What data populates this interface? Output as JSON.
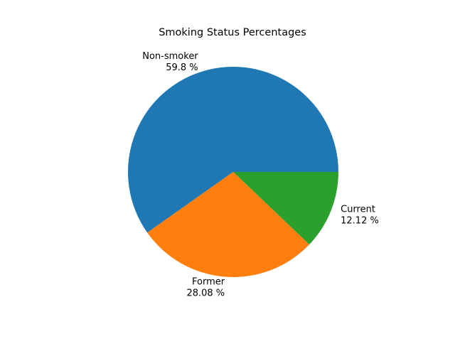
{
  "chart_data": {
    "type": "pie",
    "title": "Smoking Status Percentages",
    "slices": [
      {
        "label": "Non-smoker",
        "value": 59.8,
        "value_label": "59.8 %",
        "color": "#1f77b4"
      },
      {
        "label": "Former",
        "value": 28.08,
        "value_label": "28.08 %",
        "color": "#ff7f0e"
      },
      {
        "label": "Current",
        "value": 12.12,
        "value_label": "12.12 %",
        "color": "#2ca02c"
      }
    ],
    "start_angle": 0,
    "direction": "counterclockwise",
    "legend": "none"
  }
}
